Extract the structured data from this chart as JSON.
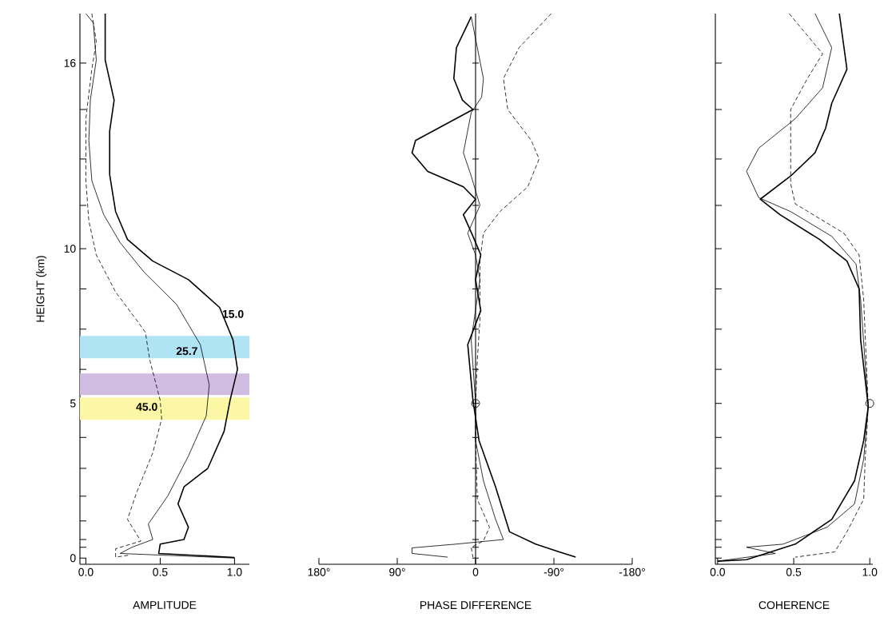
{
  "chart_data": [
    {
      "type": "line",
      "xlabel": "AMPLITUDE",
      "ylabel": "HEIGHT (km)",
      "xlim": [
        -0.04,
        1.1
      ],
      "ylim": [
        -0.2,
        17.6
      ],
      "xticks": [
        {
          "value": 0,
          "label": "0.0"
        },
        {
          "value": 0.5,
          "label": "0.5"
        },
        {
          "value": 1,
          "label": "1.0"
        }
      ],
      "yticks": [
        0,
        {
          "value": 0.35,
          "label": null
        },
        {
          "value": 0.6,
          "label": null
        },
        {
          "value": 1.2,
          "label": null
        },
        {
          "value": 2.0,
          "label": null
        },
        {
          "value": 2.9,
          "label": null
        },
        {
          "value": 3.9,
          "label": null
        },
        5,
        {
          "value": 6.1,
          "label": null
        },
        {
          "value": 7.4,
          "label": null
        },
        {
          "value": 8.7,
          "label": null
        },
        10,
        {
          "value": 11.4,
          "label": null
        },
        {
          "value": 12.9,
          "label": null
        },
        {
          "value": 14.5,
          "label": null
        },
        16
      ],
      "bands": [
        {
          "axis": "y",
          "from": 6.46,
          "to": 7.18,
          "color": "#b0e4f5"
        },
        {
          "axis": "y",
          "from": 5.27,
          "to": 5.97,
          "color": "#d2bde2"
        },
        {
          "axis": "y",
          "from": 4.47,
          "to": 5.19,
          "color": "#fbf7a6"
        }
      ],
      "annotations": [
        {
          "text": "15.0",
          "x": 0.9,
          "y": 8.1
        },
        {
          "text": "25.7",
          "x": 0.77,
          "y": 6.9
        },
        {
          "text": "45.0",
          "x": 0.5,
          "y": 5.1
        }
      ],
      "series": [
        {
          "color": "#000000",
          "line_style": "solid",
          "x": [
            0.13,
            0.13,
            0.19,
            0.16,
            0.16,
            0.2,
            0.28,
            0.45,
            0.69,
            0.9,
            0.99,
            1.02,
            0.97,
            0.93,
            0.82,
            0.66,
            0.62,
            0.69,
            0.66,
            0.5,
            0.49,
            1.0
          ],
          "values": [
            17.6,
            16.1,
            14.8,
            13.8,
            12.4,
            11.2,
            10.3,
            9.6,
            9.0,
            8.1,
            7.05,
            6.1,
            5.1,
            4.1,
            2.9,
            2.3,
            1.75,
            1.0,
            0.6,
            0.45,
            0.15,
            0.02
          ]
        },
        {
          "color": "#000000",
          "line_style": "solid",
          "x": [
            0.0,
            0.05,
            0.07,
            0.03,
            0.02,
            0.04,
            0.12,
            0.23,
            0.39,
            0.61,
            0.77,
            0.83,
            0.81,
            0.69,
            0.55,
            0.42,
            0.45,
            0.31,
            0.23,
            1.0
          ],
          "values": [
            17.6,
            17.3,
            16.1,
            14.8,
            13.5,
            12.2,
            11.1,
            10.2,
            9.25,
            8.2,
            6.9,
            5.6,
            4.6,
            3.3,
            2.0,
            1.1,
            0.6,
            0.35,
            0.15,
            0.0
          ]
        },
        {
          "color": "#000000",
          "line_style": "dashed",
          "x": [
            0.04,
            0.07,
            0.04,
            0.0,
            0.0,
            0.02,
            0.07,
            0.2,
            0.34,
            0.4,
            0.43,
            0.5,
            0.51,
            0.45,
            0.34,
            0.28,
            0.37,
            0.2,
            0.2,
            0.3
          ],
          "values": [
            17.6,
            16.7,
            15.8,
            14.2,
            12.2,
            10.9,
            9.8,
            8.6,
            7.7,
            7.3,
            6.4,
            5.1,
            4.5,
            3.4,
            2.1,
            1.25,
            0.55,
            0.3,
            0.03,
            0.1
          ]
        }
      ]
    },
    {
      "type": "line",
      "xlabel": "PHASE DIFFERENCE",
      "tick_labels": "x",
      "xlim": [
        180,
        -180
      ],
      "ylim": [
        -0.2,
        17.6
      ],
      "xticks": [
        {
          "value": 180,
          "label": "180°"
        },
        {
          "value": 90,
          "label": "90°"
        },
        0,
        {
          "value": -90,
          "label": "-90°"
        },
        {
          "value": -180,
          "label": "-180°"
        }
      ],
      "yticks": [
        0,
        0.35,
        0.6,
        1.2,
        2.0,
        2.9,
        3.9,
        5,
        6.1,
        7.4,
        8.7,
        10,
        11.4,
        12.9,
        14.5,
        16
      ],
      "series": [
        {
          "color": "#000000",
          "line_style": "solid",
          "x": [
            5,
            22,
            25,
            15,
            3,
            69,
            73,
            55,
            14,
            0,
            14,
            3,
            -6,
            0,
            -6,
            9,
            3,
            -4,
            -23,
            -39,
            -69,
            -96,
            -115
          ],
          "values": [
            17.5,
            16.5,
            15.5,
            14.8,
            14.5,
            13.5,
            13.1,
            12.5,
            12.0,
            11.6,
            11.1,
            10.4,
            9.8,
            9.0,
            8.0,
            6.9,
            5.1,
            3.8,
            2.3,
            0.85,
            0.45,
            0.2,
            0.03
          ]
        },
        {
          "color": "#000000",
          "line_style": "solid",
          "x": [
            5,
            -9,
            -7,
            5,
            14,
            5,
            -5,
            9,
            0,
            -5,
            5,
            0,
            0,
            -9,
            -23,
            -32,
            23,
            73,
            73,
            32
          ],
          "values": [
            17.5,
            15.5,
            14.9,
            14.4,
            13.1,
            12.35,
            11.4,
            10.5,
            9.8,
            9.0,
            7.05,
            5.0,
            3.8,
            2.5,
            1.25,
            0.6,
            0.45,
            0.33,
            0.15,
            0.03
          ]
        },
        {
          "color": "#000000",
          "line_style": "dashed",
          "x": [
            -87,
            -50,
            -32,
            -37,
            -64,
            -73,
            -60,
            -28,
            -9,
            -5,
            -5,
            -2,
            0,
            0,
            -2,
            -16,
            -9,
            5,
            3
          ],
          "values": [
            17.6,
            16.5,
            15.5,
            14.5,
            13.5,
            12.9,
            12.0,
            11.2,
            10.5,
            9.6,
            7.7,
            6.4,
            5.0,
            3.8,
            1.9,
            1.0,
            0.55,
            0.35,
            0.03
          ]
        },
        {
          "type": "scatter",
          "marker": "circle",
          "color": "#000000",
          "x": [
            0
          ],
          "values": [
            5
          ]
        }
      ]
    },
    {
      "type": "line",
      "xlabel": "COHERENCE",
      "tick_labels": "x",
      "xlim": [
        -0.015,
        1.02
      ],
      "ylim": [
        -0.2,
        17.6
      ],
      "xticks": [
        {
          "value": 0,
          "label": "0.0"
        },
        {
          "value": 0.5,
          "label": "0.5"
        },
        {
          "value": 1,
          "label": "1.0"
        }
      ],
      "yticks": [
        0,
        0.35,
        0.6,
        1.2,
        2.0,
        2.9,
        3.9,
        5,
        6.1,
        7.4,
        8.7,
        10,
        11.4,
        12.9,
        14.5,
        16
      ],
      "series": [
        {
          "color": "#000000",
          "line_style": "solid",
          "x": [
            0.8,
            0.85,
            0.75,
            0.71,
            0.64,
            0.48,
            0.28,
            0.41,
            0.67,
            0.85,
            0.93,
            0.94,
            0.99,
            0.96,
            0.9,
            0.75,
            0.51,
            0.19,
            0.0
          ],
          "values": [
            17.6,
            15.8,
            14.7,
            13.9,
            13.1,
            12.35,
            11.6,
            11.1,
            10.3,
            9.6,
            8.7,
            7.05,
            4.9,
            3.8,
            2.5,
            1.25,
            0.45,
            -0.05,
            -0.1
          ]
        },
        {
          "color": "#000000",
          "line_style": "solid",
          "x": [
            0.64,
            0.75,
            0.69,
            0.51,
            0.27,
            0.19,
            0.27,
            0.48,
            0.75,
            0.91,
            0.94,
            0.99,
            0.96,
            0.9,
            0.72,
            0.43,
            0.19,
            0.38,
            0.0
          ],
          "values": [
            17.6,
            16.5,
            15.2,
            14.2,
            13.25,
            12.5,
            11.65,
            11.2,
            10.4,
            9.5,
            8.35,
            4.9,
            3.2,
            1.75,
            1.0,
            0.45,
            0.35,
            0.15,
            -0.1
          ]
        },
        {
          "color": "#000000",
          "line_style": "dashed",
          "x": [
            0.47,
            0.69,
            0.59,
            0.48,
            0.48,
            0.51,
            0.83,
            0.93,
            0.96,
            0.99,
            0.97,
            0.96,
            0.85,
            0.77,
            0.51
          ],
          "values": [
            17.6,
            16.3,
            15.5,
            14.5,
            12.1,
            11.45,
            10.5,
            9.8,
            8.35,
            4.9,
            3.2,
            1.9,
            0.85,
            0.2,
            0.03
          ]
        },
        {
          "type": "scatter",
          "marker": "circle",
          "color": "#000000",
          "x": [
            1
          ],
          "values": [
            5
          ]
        }
      ]
    }
  ]
}
